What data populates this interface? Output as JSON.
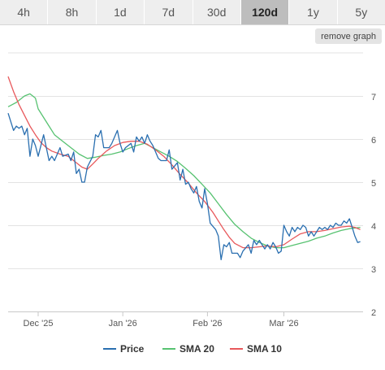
{
  "range_tabs": [
    {
      "label": "4h"
    },
    {
      "label": "8h"
    },
    {
      "label": "1d"
    },
    {
      "label": "7d"
    },
    {
      "label": "30d"
    },
    {
      "label": "120d",
      "active": true
    },
    {
      "label": "1y"
    },
    {
      "label": "5y"
    }
  ],
  "remove_graph_label": "remove graph",
  "chart_data": {
    "type": "line",
    "title": "",
    "xlabel": "",
    "ylabel": "",
    "x_range": [
      "2025-11-20",
      "2026-03-30"
    ],
    "ylim": [
      2,
      8
    ],
    "y_ticks": [
      2,
      3,
      4,
      5,
      6,
      7
    ],
    "y_tick_position": "right",
    "x_ticks": [
      {
        "date": "2025-12-01",
        "label": "Dec '25"
      },
      {
        "date": "2026-01-01",
        "label": "Jan '26"
      },
      {
        "date": "2026-02-01",
        "label": "Feb '26"
      },
      {
        "date": "2026-03-01",
        "label": "Mar '26"
      }
    ],
    "grid": true,
    "legend_position": "bottom",
    "series": [
      {
        "name": "Price",
        "color": "#2a6fb0",
        "points": [
          [
            "2025-11-20",
            6.6
          ],
          [
            "2025-11-22",
            6.2
          ],
          [
            "2025-11-23",
            6.3
          ],
          [
            "2025-11-24",
            6.25
          ],
          [
            "2025-11-25",
            6.3
          ],
          [
            "2025-11-26",
            6.1
          ],
          [
            "2025-11-27",
            6.25
          ],
          [
            "2025-11-28",
            5.6
          ],
          [
            "2025-11-29",
            6.0
          ],
          [
            "2025-11-30",
            5.85
          ],
          [
            "2025-12-01",
            5.6
          ],
          [
            "2025-12-03",
            6.1
          ],
          [
            "2025-12-05",
            5.5
          ],
          [
            "2025-12-06",
            5.6
          ],
          [
            "2025-12-07",
            5.5
          ],
          [
            "2025-12-09",
            5.8
          ],
          [
            "2025-12-10",
            5.6
          ],
          [
            "2025-12-12",
            5.65
          ],
          [
            "2025-12-13",
            5.5
          ],
          [
            "2025-12-14",
            5.7
          ],
          [
            "2025-12-15",
            5.2
          ],
          [
            "2025-12-16",
            5.3
          ],
          [
            "2025-12-17",
            5.0
          ],
          [
            "2025-12-18",
            5.0
          ],
          [
            "2025-12-19",
            5.35
          ],
          [
            "2025-12-21",
            5.6
          ],
          [
            "2025-12-22",
            6.1
          ],
          [
            "2025-12-23",
            6.05
          ],
          [
            "2025-12-24",
            6.2
          ],
          [
            "2025-12-25",
            5.8
          ],
          [
            "2025-12-27",
            5.8
          ],
          [
            "2025-12-28",
            5.9
          ],
          [
            "2025-12-30",
            6.2
          ],
          [
            "2025-12-31",
            5.9
          ],
          [
            "2026-01-01",
            5.7
          ],
          [
            "2026-01-02",
            5.8
          ],
          [
            "2026-01-04",
            5.9
          ],
          [
            "2026-01-05",
            5.7
          ],
          [
            "2026-01-06",
            6.05
          ],
          [
            "2026-01-07",
            5.95
          ],
          [
            "2026-01-08",
            6.05
          ],
          [
            "2026-01-09",
            5.9
          ],
          [
            "2026-01-10",
            6.1
          ],
          [
            "2026-01-11",
            5.95
          ],
          [
            "2026-01-12",
            5.85
          ],
          [
            "2026-01-14",
            5.55
          ],
          [
            "2026-01-15",
            5.5
          ],
          [
            "2026-01-17",
            5.5
          ],
          [
            "2026-01-18",
            5.75
          ],
          [
            "2026-01-19",
            5.3
          ],
          [
            "2026-01-21",
            5.45
          ],
          [
            "2026-01-22",
            5.05
          ],
          [
            "2026-01-23",
            5.3
          ],
          [
            "2026-01-24",
            4.95
          ],
          [
            "2026-01-25",
            5.0
          ],
          [
            "2026-01-26",
            4.85
          ],
          [
            "2026-01-27",
            4.75
          ],
          [
            "2026-01-28",
            4.9
          ],
          [
            "2026-01-29",
            4.55
          ],
          [
            "2026-01-30",
            4.4
          ],
          [
            "2026-01-31",
            4.85
          ],
          [
            "2026-02-01",
            4.5
          ],
          [
            "2026-02-02",
            4.05
          ],
          [
            "2026-02-04",
            3.9
          ],
          [
            "2026-02-05",
            3.75
          ],
          [
            "2026-02-06",
            3.2
          ],
          [
            "2026-02-07",
            3.55
          ],
          [
            "2026-02-08",
            3.5
          ],
          [
            "2026-02-09",
            3.6
          ],
          [
            "2026-02-10",
            3.35
          ],
          [
            "2026-02-12",
            3.35
          ],
          [
            "2026-02-13",
            3.25
          ],
          [
            "2026-02-14",
            3.4
          ],
          [
            "2026-02-16",
            3.55
          ],
          [
            "2026-02-17",
            3.35
          ],
          [
            "2026-02-18",
            3.65
          ],
          [
            "2026-02-19",
            3.55
          ],
          [
            "2026-02-20",
            3.65
          ],
          [
            "2026-02-21",
            3.55
          ],
          [
            "2026-02-22",
            3.45
          ],
          [
            "2026-02-23",
            3.55
          ],
          [
            "2026-02-24",
            3.45
          ],
          [
            "2026-02-25",
            3.6
          ],
          [
            "2026-02-26",
            3.5
          ],
          [
            "2026-02-27",
            3.35
          ],
          [
            "2026-02-28",
            3.4
          ],
          [
            "2026-03-01",
            4.0
          ],
          [
            "2026-03-02",
            3.85
          ],
          [
            "2026-03-03",
            3.75
          ],
          [
            "2026-03-04",
            3.95
          ],
          [
            "2026-03-05",
            3.85
          ],
          [
            "2026-03-06",
            3.95
          ],
          [
            "2026-03-07",
            3.9
          ],
          [
            "2026-03-08",
            4.0
          ],
          [
            "2026-03-09",
            3.95
          ],
          [
            "2026-03-10",
            3.75
          ],
          [
            "2026-03-11",
            3.85
          ],
          [
            "2026-03-12",
            3.75
          ],
          [
            "2026-03-13",
            3.85
          ],
          [
            "2026-03-14",
            3.95
          ],
          [
            "2026-03-15",
            3.9
          ],
          [
            "2026-03-16",
            3.95
          ],
          [
            "2026-03-17",
            3.9
          ],
          [
            "2026-03-18",
            4.0
          ],
          [
            "2026-03-19",
            3.95
          ],
          [
            "2026-03-20",
            4.05
          ],
          [
            "2026-03-21",
            4.0
          ],
          [
            "2026-03-22",
            4.0
          ],
          [
            "2026-03-23",
            4.1
          ],
          [
            "2026-03-24",
            4.05
          ],
          [
            "2026-03-25",
            4.15
          ],
          [
            "2026-03-26",
            3.95
          ],
          [
            "2026-03-27",
            3.75
          ],
          [
            "2026-03-28",
            3.6
          ],
          [
            "2026-03-29",
            3.62
          ]
        ]
      },
      {
        "name": "SMA 20",
        "color": "#57c271",
        "points": [
          [
            "2025-11-20",
            6.75
          ],
          [
            "2025-11-23",
            6.85
          ],
          [
            "2025-11-26",
            7.0
          ],
          [
            "2025-11-28",
            7.05
          ],
          [
            "2025-11-30",
            6.95
          ],
          [
            "2025-12-01",
            6.7
          ],
          [
            "2025-12-03",
            6.5
          ],
          [
            "2025-12-05",
            6.3
          ],
          [
            "2025-12-07",
            6.1
          ],
          [
            "2025-12-10",
            5.95
          ],
          [
            "2025-12-13",
            5.8
          ],
          [
            "2025-12-16",
            5.65
          ],
          [
            "2025-12-19",
            5.55
          ],
          [
            "2025-12-22",
            5.58
          ],
          [
            "2025-12-25",
            5.62
          ],
          [
            "2025-12-28",
            5.65
          ],
          [
            "2025-12-31",
            5.7
          ],
          [
            "2026-01-03",
            5.78
          ],
          [
            "2026-01-06",
            5.85
          ],
          [
            "2026-01-09",
            5.9
          ],
          [
            "2026-01-12",
            5.8
          ],
          [
            "2026-01-15",
            5.7
          ],
          [
            "2026-01-18",
            5.6
          ],
          [
            "2026-01-21",
            5.48
          ],
          [
            "2026-01-24",
            5.32
          ],
          [
            "2026-01-27",
            5.15
          ],
          [
            "2026-01-30",
            4.95
          ],
          [
            "2026-02-02",
            4.75
          ],
          [
            "2026-02-05",
            4.5
          ],
          [
            "2026-02-08",
            4.25
          ],
          [
            "2026-02-11",
            4.02
          ],
          [
            "2026-02-14",
            3.85
          ],
          [
            "2026-02-17",
            3.7
          ],
          [
            "2026-02-20",
            3.6
          ],
          [
            "2026-02-23",
            3.52
          ],
          [
            "2026-02-26",
            3.48
          ],
          [
            "2026-03-01",
            3.48
          ],
          [
            "2026-03-04",
            3.53
          ],
          [
            "2026-03-07",
            3.58
          ],
          [
            "2026-03-10",
            3.63
          ],
          [
            "2026-03-13",
            3.7
          ],
          [
            "2026-03-16",
            3.75
          ],
          [
            "2026-03-19",
            3.82
          ],
          [
            "2026-03-22",
            3.88
          ],
          [
            "2026-03-25",
            3.92
          ],
          [
            "2026-03-29",
            3.95
          ]
        ]
      },
      {
        "name": "SMA 10",
        "color": "#e8585b",
        "points": [
          [
            "2025-11-20",
            7.45
          ],
          [
            "2025-11-22",
            7.1
          ],
          [
            "2025-11-24",
            6.8
          ],
          [
            "2025-11-26",
            6.55
          ],
          [
            "2025-11-28",
            6.3
          ],
          [
            "2025-11-30",
            6.1
          ],
          [
            "2025-12-02",
            5.92
          ],
          [
            "2025-12-04",
            5.8
          ],
          [
            "2025-12-06",
            5.72
          ],
          [
            "2025-12-09",
            5.65
          ],
          [
            "2025-12-12",
            5.6
          ],
          [
            "2025-12-15",
            5.45
          ],
          [
            "2025-12-17",
            5.35
          ],
          [
            "2025-12-19",
            5.3
          ],
          [
            "2025-12-21",
            5.42
          ],
          [
            "2025-12-23",
            5.55
          ],
          [
            "2025-12-26",
            5.72
          ],
          [
            "2025-12-29",
            5.85
          ],
          [
            "2026-01-01",
            5.92
          ],
          [
            "2026-01-04",
            5.95
          ],
          [
            "2026-01-07",
            5.95
          ],
          [
            "2026-01-10",
            5.88
          ],
          [
            "2026-01-13",
            5.75
          ],
          [
            "2026-01-16",
            5.6
          ],
          [
            "2026-01-19",
            5.4
          ],
          [
            "2026-01-22",
            5.18
          ],
          [
            "2026-01-25",
            4.98
          ],
          [
            "2026-01-28",
            4.75
          ],
          [
            "2026-01-31",
            4.55
          ],
          [
            "2026-02-03",
            4.3
          ],
          [
            "2026-02-05",
            4.1
          ],
          [
            "2026-02-07",
            3.9
          ],
          [
            "2026-02-09",
            3.72
          ],
          [
            "2026-02-11",
            3.58
          ],
          [
            "2026-02-14",
            3.48
          ],
          [
            "2026-02-17",
            3.48
          ],
          [
            "2026-02-20",
            3.5
          ],
          [
            "2026-02-23",
            3.52
          ],
          [
            "2026-02-26",
            3.5
          ],
          [
            "2026-03-01",
            3.55
          ],
          [
            "2026-03-04",
            3.68
          ],
          [
            "2026-03-07",
            3.8
          ],
          [
            "2026-03-10",
            3.85
          ],
          [
            "2026-03-13",
            3.85
          ],
          [
            "2026-03-16",
            3.88
          ],
          [
            "2026-03-19",
            3.92
          ],
          [
            "2026-03-22",
            3.96
          ],
          [
            "2026-03-25",
            3.98
          ],
          [
            "2026-03-27",
            3.95
          ],
          [
            "2026-03-29",
            3.9
          ]
        ]
      }
    ]
  }
}
